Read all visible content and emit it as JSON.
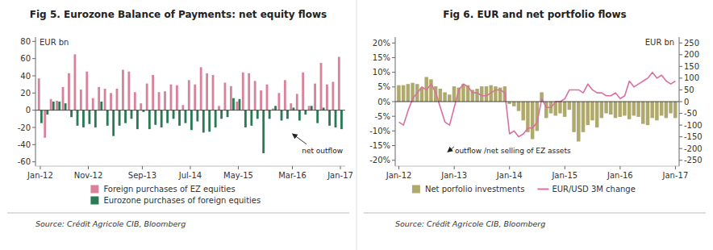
{
  "chart_data": [
    {
      "type": "bar",
      "title": "Fig 5. Eurozone Balance of Payments: net equity flows",
      "ylabel": "EUR bn",
      "categories": [
        "Jan-12",
        null,
        null,
        null,
        null,
        null,
        null,
        null,
        "Nov-12",
        null,
        null,
        null,
        null,
        null,
        null,
        null,
        null,
        "Sep-13",
        null,
        null,
        null,
        null,
        null,
        null,
        null,
        "Jul-14",
        null,
        null,
        null,
        null,
        null,
        null,
        null,
        "May-15",
        null,
        null,
        null,
        null,
        null,
        null,
        null,
        null,
        "Mar-16",
        null,
        null,
        null,
        null,
        null,
        null,
        null,
        "Jan-17"
      ],
      "series": [
        {
          "name": "Foreign purchases of EZ equities",
          "color": "#d8839b",
          "values": [
            37,
            -32,
            13,
            11,
            27,
            43,
            65,
            24,
            45,
            14,
            27,
            25,
            20,
            25,
            47,
            45,
            21,
            8,
            31,
            41,
            21,
            22,
            30,
            29,
            6,
            35,
            30,
            50,
            43,
            41,
            5,
            32,
            28,
            10,
            44,
            43,
            34,
            23,
            30,
            2,
            20,
            35,
            8,
            19,
            44,
            5,
            31,
            55,
            30,
            33,
            62
          ]
        },
        {
          "name": "Eurozone purchases of foreign equities",
          "color": "#2a7a55",
          "values": [
            -15,
            -5,
            10,
            10,
            8,
            -8,
            -18,
            -20,
            -16,
            -20,
            10,
            -18,
            -30,
            -18,
            -15,
            -10,
            -22,
            -2,
            -22,
            -17,
            -20,
            -15,
            -10,
            -18,
            -15,
            -23,
            -13,
            -26,
            -25,
            -20,
            -10,
            -8,
            14,
            13,
            -20,
            -18,
            -10,
            -50,
            -10,
            5,
            -12,
            -10,
            3,
            -12,
            -5,
            5,
            -15,
            3,
            -18,
            -20,
            -22
          ]
        }
      ],
      "ylim": [
        -65,
        85
      ],
      "yticks": [
        -60,
        -40,
        -20,
        0,
        20,
        40,
        60,
        80
      ],
      "grid": false,
      "legend": "bottom",
      "annotations": [
        "net outflow"
      ],
      "source": "Source: Crédit Agricole CIB, Bloomberg"
    },
    {
      "type": "bar",
      "title": "Fig 6. EUR and net portfolio flows",
      "ylabel": "EUR bn",
      "categories": [
        "Jan-12",
        null,
        null,
        null,
        null,
        null,
        null,
        null,
        null,
        null,
        null,
        null,
        "Jan-13",
        null,
        null,
        null,
        null,
        null,
        null,
        null,
        null,
        null,
        null,
        null,
        "Jan-14",
        null,
        null,
        null,
        null,
        null,
        null,
        null,
        null,
        null,
        null,
        null,
        "Jan-15",
        null,
        null,
        null,
        null,
        null,
        null,
        null,
        null,
        null,
        null,
        null,
        "Jan-16",
        null,
        null,
        null,
        null,
        null,
        null,
        null,
        null,
        null,
        null,
        null,
        "Jan-17"
      ],
      "series": [
        {
          "name": "Net porfolio investments",
          "type": "bar",
          "color": "#b0a96e",
          "values": [
            70,
            70,
            75,
            80,
            75,
            60,
            105,
            95,
            65,
            55,
            40,
            30,
            65,
            60,
            75,
            70,
            50,
            55,
            65,
            65,
            70,
            65,
            60,
            65,
            -10,
            -20,
            -40,
            -80,
            -130,
            -160,
            -125,
            40,
            -70,
            -50,
            -60,
            -50,
            -65,
            -35,
            -130,
            -170,
            -130,
            -100,
            -80,
            -110,
            -70,
            -50,
            -55,
            -70,
            -65,
            -60,
            -75,
            -60,
            -65,
            -95,
            -100,
            -70,
            -80,
            -60,
            -70,
            -50,
            -70
          ]
        },
        {
          "name": "EUR/USD 3M change",
          "type": "line",
          "axis": "y2",
          "color": "#d970a0",
          "values": [
            -0.07,
            -0.08,
            -0.03,
            0.01,
            0.03,
            0.05,
            0.04,
            0.06,
            0.03,
            -0.02,
            -0.07,
            -0.08,
            -0.02,
            0.04,
            0.06,
            0.05,
            0.03,
            0.03,
            0.02,
            0.02,
            0.03,
            0.04,
            0.04,
            0.03,
            -0.11,
            -0.1,
            -0.12,
            -0.11,
            -0.09,
            -0.09,
            -0.07,
            0.01,
            -0.02,
            -0.02,
            0.0,
            0.0,
            0.01,
            0.04,
            0.04,
            0.04,
            0.03,
            0.06,
            0.04,
            0.03,
            0.03,
            0.02,
            0.02,
            0.03,
            0.01,
            0.02,
            0.07,
            0.05,
            0.06,
            0.07,
            0.08,
            0.1,
            0.08,
            0.09,
            0.07,
            0.06,
            0.07
          ]
        }
      ],
      "ylim": [
        -275,
        275
      ],
      "yticks": [
        -250,
        -200,
        -150,
        -100,
        -50,
        0,
        50,
        100,
        150,
        200,
        250
      ],
      "y2lim": [
        -0.22,
        0.22
      ],
      "y2ticks": [
        {
          "value": -0.2,
          "label": "-20%"
        },
        {
          "value": -0.15,
          "label": "-15%"
        },
        {
          "value": -0.1,
          "label": "-10%"
        },
        {
          "value": -0.05,
          "label": "-5%"
        },
        {
          "value": 0.0,
          "label": "0%"
        },
        {
          "value": 0.05,
          "label": "5%"
        },
        {
          "value": 0.1,
          "label": "10%"
        },
        {
          "value": 0.15,
          "label": "15%"
        },
        {
          "value": 0.2,
          "label": "20%"
        }
      ],
      "grid": false,
      "legend": "bottom",
      "annotations": [
        "outflow /net selling of EZ assets"
      ],
      "source": "Source: Crédit Agricole CIB, Bloomberg"
    }
  ]
}
